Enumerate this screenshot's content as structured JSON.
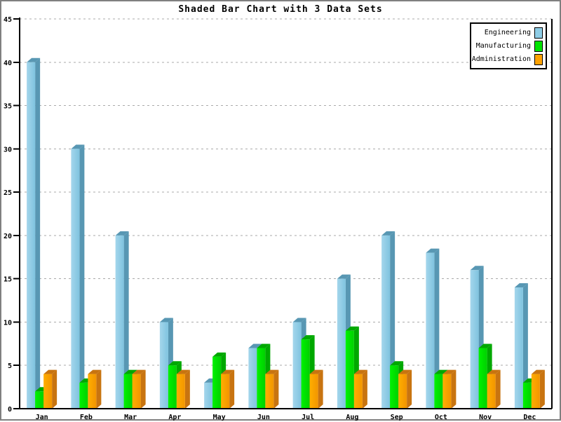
{
  "chart_data": {
    "type": "bar",
    "title": "Shaded Bar Chart with 3 Data Sets",
    "style": "3d-shaded-grouped-bars",
    "categories": [
      "Jan",
      "Feb",
      "Mar",
      "Apr",
      "May",
      "Jun",
      "Jul",
      "Aug",
      "Sep",
      "Oct",
      "Nov",
      "Dec"
    ],
    "series": [
      {
        "name": "Engineering",
        "color": "#8ECDE6",
        "color_light": "#A4D6EC",
        "color_dark": "#7FC3DF",
        "shade": "#5897B3",
        "values": [
          40,
          30,
          20,
          10,
          3,
          7,
          10,
          15,
          20,
          18,
          16,
          14
        ]
      },
      {
        "name": "Manufacturing",
        "color": "#00E400",
        "color_light": "#00F200",
        "color_dark": "#00D000",
        "shade": "#00A800",
        "values": [
          2,
          3,
          4,
          5,
          6,
          7,
          8,
          9,
          5,
          4,
          7,
          3
        ]
      },
      {
        "name": "Administration",
        "color": "#FFA200",
        "color_light": "#FFAE00",
        "color_dark": "#F29500",
        "shade": "#C87410",
        "values": [
          4,
          4,
          4,
          4,
          4,
          4,
          4,
          4,
          4,
          4,
          4,
          4
        ]
      }
    ],
    "xlabel": "",
    "ylabel": "",
    "ylim": [
      0,
      45
    ],
    "ytick_interval": 5,
    "ytick_labels": [
      "0",
      "5",
      "10",
      "15",
      "20",
      "25",
      "30",
      "35",
      "40",
      "45"
    ],
    "grid": "horizontal-dashed",
    "legend_position": "top-right"
  },
  "colors": {
    "background": "#FFFFFF",
    "outer_border": "#808080",
    "axis": "#000000",
    "gridline": "#AAAAAA",
    "legend_border": "#000000",
    "text": "#000000"
  }
}
